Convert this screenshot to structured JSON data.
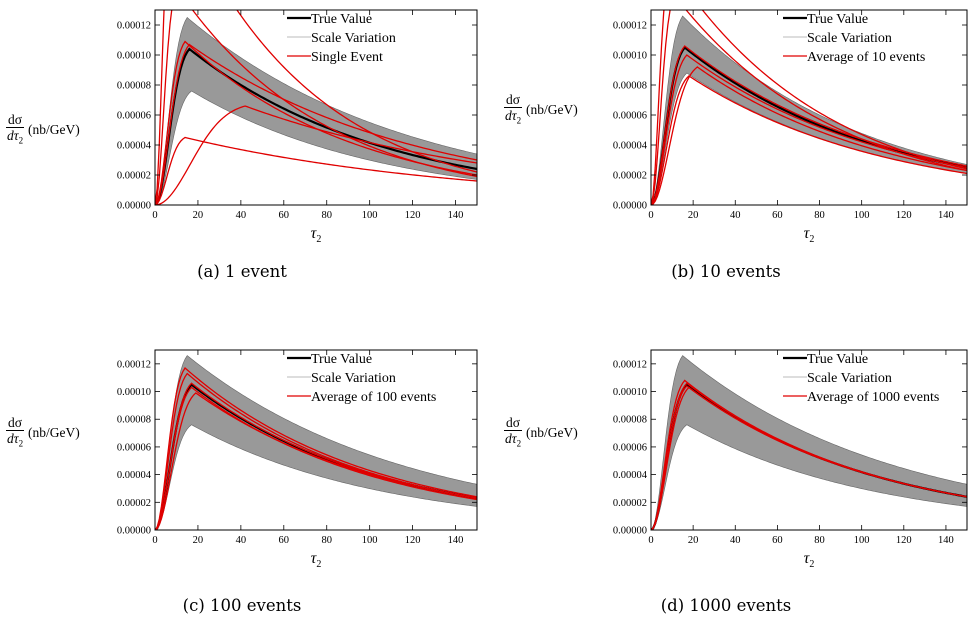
{
  "chart_data": [
    {
      "type": "line",
      "caption": "(a)  1 event",
      "xlabel": "τ",
      "xlabel_sub": "2",
      "ylabel": {
        "num": "dσ",
        "den": "dτ",
        "den_sub": "2",
        "unit": "(nb/GeV)"
      },
      "xlim": [
        0,
        150
      ],
      "ylim": [
        0,
        0.00013
      ],
      "x_ticks": [
        0,
        20,
        40,
        60,
        80,
        100,
        120,
        140
      ],
      "y_ticks": [
        "0.00000",
        "0.00002",
        "0.00004",
        "0.00006",
        "0.00008",
        "0.00010",
        "0.00012"
      ],
      "legend": {
        "position": "top-right",
        "entries": [
          "True Value",
          "Scale Variation",
          "Single Event"
        ]
      },
      "series": [
        {
          "name": "True Value",
          "role": "true",
          "color": "#000000",
          "peak": 0.000104,
          "peak_x": 16,
          "tail": 2.4e-05
        },
        {
          "name": "Scale Variation",
          "role": "band",
          "color": "#999999",
          "upper": {
            "peak": 0.000125,
            "peak_x": 15,
            "tail": 3.4e-05
          },
          "lower": {
            "peak": 7.6e-05,
            "peak_x": 17,
            "tail": 1.7e-05
          }
        },
        {
          "name": "Single Event",
          "role": "event",
          "color": "#e00000",
          "curves": [
            {
              "peak": 0.000145,
              "peak_x": 10,
              "tail": 1.9e-05
            },
            {
              "peak": 0.00021,
              "peak_x": 8,
              "tail": 2.2e-05
            },
            {
              "peak": 0.000109,
              "peak_x": 14,
              "tail": 2e-05
            },
            {
              "peak": 0.000107,
              "peak_x": 16,
              "tail": 3e-05
            },
            {
              "peak": 4.5e-05,
              "peak_x": 14,
              "tail": 1.6e-05
            },
            {
              "peak": 6.6e-05,
              "peak_x": 42,
              "tail": 2.8e-05
            }
          ]
        }
      ]
    },
    {
      "type": "line",
      "caption": "(b)  10 events",
      "xlabel": "τ",
      "xlabel_sub": "2",
      "ylabel": {
        "num": "dσ",
        "den": "dτ",
        "den_sub": "2",
        "unit": "(nb/GeV)"
      },
      "xlim": [
        0,
        150
      ],
      "ylim": [
        0,
        0.00013
      ],
      "x_ticks": [
        0,
        20,
        40,
        60,
        80,
        100,
        120,
        140
      ],
      "y_ticks": [
        "0.00000",
        "0.00002",
        "0.00004",
        "0.00006",
        "0.00008",
        "0.00010",
        "0.00012"
      ],
      "legend": {
        "position": "top-right",
        "entries": [
          "True Value",
          "Scale Variation",
          "Average of 10 events"
        ]
      },
      "series": [
        {
          "name": "True Value",
          "role": "true",
          "color": "#000000",
          "peak": 0.000105,
          "peak_x": 16,
          "tail": 2.5e-05
        },
        {
          "name": "Scale Variation",
          "role": "band",
          "color": "#999999",
          "upper": {
            "peak": 0.000126,
            "peak_x": 15,
            "tail": 2.7e-05
          },
          "lower": {
            "peak": 8.8e-05,
            "peak_x": 17,
            "tail": 2.1e-05
          }
        },
        {
          "name": "Average of 10 events",
          "role": "event",
          "color": "#e00000",
          "curves": [
            {
              "peak": 0.00016,
              "peak_x": 9,
              "tail": 2.4e-05
            },
            {
              "peak": 0.00014,
              "peak_x": 11,
              "tail": 2.3e-05
            },
            {
              "peak": 0.000106,
              "peak_x": 16,
              "tail": 2.6e-05
            },
            {
              "peak": 0.0001,
              "peak_x": 17,
              "tail": 2.5e-05
            },
            {
              "peak": 9.2e-05,
              "peak_x": 22,
              "tail": 2.3e-05
            },
            {
              "peak": 8.6e-05,
              "peak_x": 18,
              "tail": 2.1e-05
            }
          ]
        }
      ]
    },
    {
      "type": "line",
      "caption": "(c)  100 events",
      "xlabel": "τ",
      "xlabel_sub": "2",
      "ylabel": {
        "num": "dσ",
        "den": "dτ",
        "den_sub": "2",
        "unit": "(nb/GeV)"
      },
      "xlim": [
        0,
        150
      ],
      "ylim": [
        0,
        0.00013
      ],
      "x_ticks": [
        0,
        20,
        40,
        60,
        80,
        100,
        120,
        140
      ],
      "y_ticks": [
        "0.00000",
        "0.00002",
        "0.00004",
        "0.00006",
        "0.00008",
        "0.00010",
        "0.00012"
      ],
      "legend": {
        "position": "top-right",
        "entries": [
          "True Value",
          "Scale Variation",
          "Average of 100 events"
        ]
      },
      "series": [
        {
          "name": "True Value",
          "role": "true",
          "color": "#000000",
          "peak": 0.000105,
          "peak_x": 17,
          "tail": 2.3e-05
        },
        {
          "name": "Scale Variation",
          "role": "band",
          "color": "#999999",
          "upper": {
            "peak": 0.000126,
            "peak_x": 15,
            "tail": 3.3e-05
          },
          "lower": {
            "peak": 7.6e-05,
            "peak_x": 17,
            "tail": 1.7e-05
          }
        },
        {
          "name": "Average of 100 events",
          "role": "event",
          "color": "#e00000",
          "curves": [
            {
              "peak": 0.000117,
              "peak_x": 14,
              "tail": 2.4e-05
            },
            {
              "peak": 0.000113,
              "peak_x": 15,
              "tail": 2.3e-05
            },
            {
              "peak": 0.000106,
              "peak_x": 17,
              "tail": 2.3e-05
            },
            {
              "peak": 0.000103,
              "peak_x": 17,
              "tail": 2.2e-05
            },
            {
              "peak": 9.9e-05,
              "peak_x": 19,
              "tail": 2.3e-05
            }
          ]
        }
      ]
    },
    {
      "type": "line",
      "caption": "(d)  1000 events",
      "xlabel": "τ",
      "xlabel_sub": "2",
      "ylabel": {
        "num": "dσ",
        "den": "dτ",
        "den_sub": "2",
        "unit": "(nb/GeV)"
      },
      "xlim": [
        0,
        150
      ],
      "ylim": [
        0,
        0.00013
      ],
      "x_ticks": [
        0,
        20,
        40,
        60,
        80,
        100,
        120,
        140
      ],
      "y_ticks": [
        "0.00000",
        "0.00002",
        "0.00004",
        "0.00006",
        "0.00008",
        "0.00010",
        "0.00012"
      ],
      "legend": {
        "position": "top-right",
        "entries": [
          "True Value",
          "Scale Variation",
          "Average of 1000 events"
        ]
      },
      "series": [
        {
          "name": "True Value",
          "role": "true",
          "color": "#000000",
          "peak": 0.000105,
          "peak_x": 17,
          "tail": 2.4e-05
        },
        {
          "name": "Scale Variation",
          "role": "band",
          "color": "#999999",
          "upper": {
            "peak": 0.000126,
            "peak_x": 15,
            "tail": 3.3e-05
          },
          "lower": {
            "peak": 7.6e-05,
            "peak_x": 17,
            "tail": 1.7e-05
          }
        },
        {
          "name": "Average of 1000 events",
          "role": "event",
          "color": "#e00000",
          "curves": [
            {
              "peak": 0.000108,
              "peak_x": 16,
              "tail": 2.4e-05
            },
            {
              "peak": 0.000106,
              "peak_x": 17,
              "tail": 2.4e-05
            },
            {
              "peak": 0.000104,
              "peak_x": 17,
              "tail": 2.4e-05
            },
            {
              "peak": 0.000103,
              "peak_x": 18,
              "tail": 2.4e-05
            }
          ]
        }
      ]
    }
  ]
}
